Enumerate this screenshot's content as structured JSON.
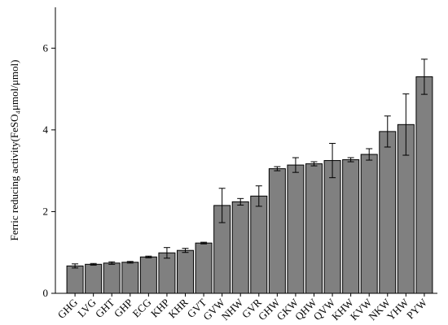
{
  "chart_data": {
    "type": "bar",
    "y_label": "Ferric reducing activity(FeSO₄μmol/μmol)",
    "categories": [
      "GHG",
      "LVG",
      "GHT",
      "GHP",
      "ECG",
      "KHP",
      "KHR",
      "GVT",
      "GVW",
      "NHW",
      "GVR",
      "GHW",
      "GKW",
      "QHW",
      "QVW",
      "KHW",
      "KVW",
      "NKW",
      "YHW",
      "PYW"
    ],
    "values": [
      0.67,
      0.71,
      0.74,
      0.76,
      0.89,
      0.99,
      1.05,
      1.23,
      2.15,
      2.24,
      2.38,
      3.05,
      3.14,
      3.17,
      3.25,
      3.27,
      3.4,
      3.96,
      4.13,
      5.3
    ],
    "errors": [
      0.05,
      0.02,
      0.03,
      0.02,
      0.02,
      0.13,
      0.05,
      0.02,
      0.42,
      0.08,
      0.25,
      0.05,
      0.18,
      0.05,
      0.42,
      0.05,
      0.14,
      0.38,
      0.75,
      0.43
    ],
    "color": "#808080",
    "ylim": [
      0,
      7
    ],
    "yticks": [
      0,
      2,
      4,
      6
    ]
  }
}
